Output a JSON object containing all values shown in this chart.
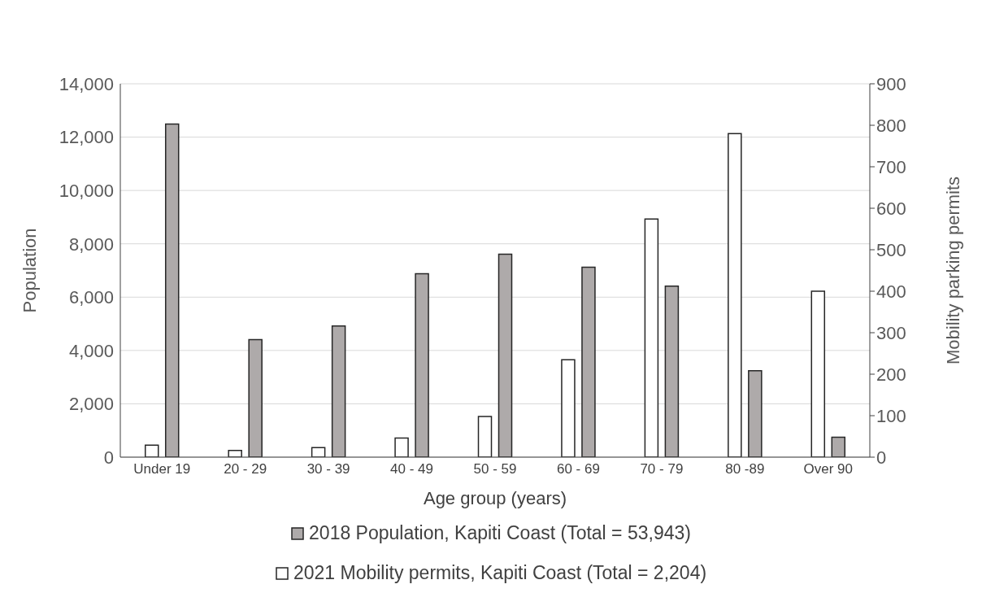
{
  "chart_data": {
    "type": "bar",
    "xlabel": "Age group (years)",
    "ylabel": "Population",
    "y2label": "Mobility parking permits",
    "categories": [
      "Under 19",
      "20 - 29",
      "30 - 39",
      "40 - 49",
      "50 - 59",
      "60 - 69",
      "70 - 79",
      "80 -89",
      "Over 90"
    ],
    "series": [
      {
        "name": "2018 Population, Kapiti Coast (Total = 53,943)",
        "color": "#aeaaaa",
        "values": [
          12490,
          4410,
          4920,
          6880,
          7610,
          7120,
          6410,
          3240,
          750
        ]
      },
      {
        "name": "2021 Mobility permits, Kapiti Coast (Total = 2,204)",
        "color": "#ffffff",
        "axis": "y2",
        "values": [
          29,
          16,
          23,
          46,
          98,
          235,
          574,
          780,
          400
        ]
      }
    ],
    "ylim": [
      0,
      14000
    ],
    "yticks": [
      {
        "value": 0,
        "label": "0"
      },
      {
        "value": 2000,
        "label": "2,000"
      },
      {
        "value": 4000,
        "label": "4,000"
      },
      {
        "value": 6000,
        "label": "6,000"
      },
      {
        "value": 8000,
        "label": "8,000"
      },
      {
        "value": 10000,
        "label": "10,000"
      },
      {
        "value": 12000,
        "label": "12,000"
      },
      {
        "value": 14000,
        "label": "14,000"
      }
    ],
    "y2lim": [
      0,
      900
    ],
    "y2ticks": [
      0,
      100,
      200,
      300,
      400,
      500,
      600,
      700,
      800,
      900
    ],
    "grid": "y",
    "legend": "bottom"
  }
}
